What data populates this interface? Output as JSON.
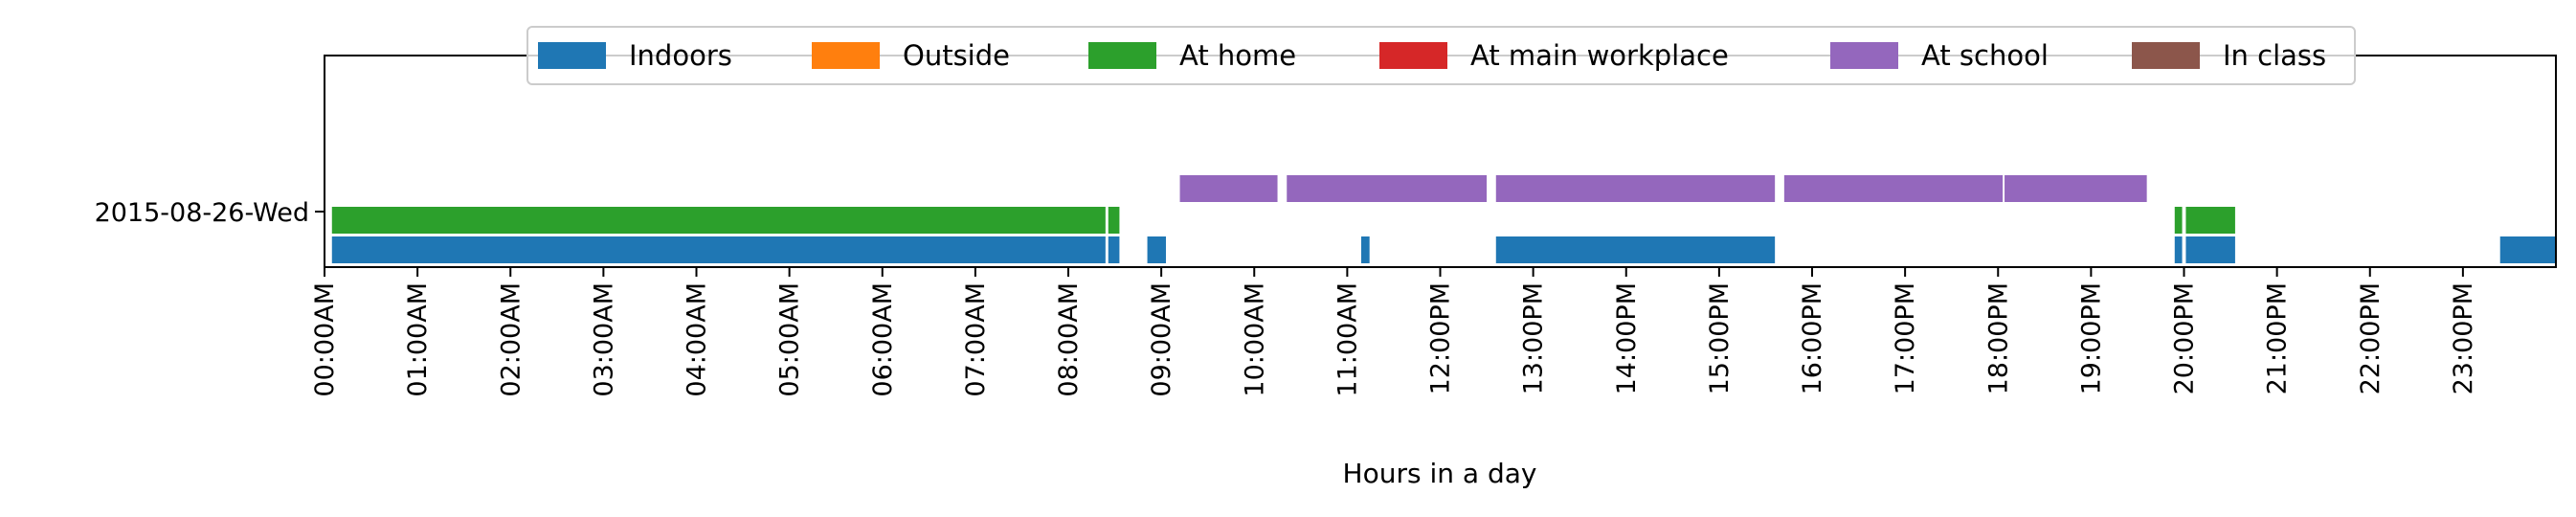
{
  "chart_data": {
    "type": "timeline",
    "title": "",
    "xlabel": "Hours in a day",
    "ylabel": "",
    "xlim": [
      0,
      24
    ],
    "x_ticks": [
      {
        "v": 0,
        "label": "00:00AM"
      },
      {
        "v": 1,
        "label": "01:00AM"
      },
      {
        "v": 2,
        "label": "02:00AM"
      },
      {
        "v": 3,
        "label": "03:00AM"
      },
      {
        "v": 4,
        "label": "04:00AM"
      },
      {
        "v": 5,
        "label": "05:00AM"
      },
      {
        "v": 6,
        "label": "06:00AM"
      },
      {
        "v": 7,
        "label": "07:00AM"
      },
      {
        "v": 8,
        "label": "08:00AM"
      },
      {
        "v": 9,
        "label": "09:00AM"
      },
      {
        "v": 10,
        "label": "10:00AM"
      },
      {
        "v": 11,
        "label": "11:00AM"
      },
      {
        "v": 12,
        "label": "12:00PM"
      },
      {
        "v": 13,
        "label": "13:00PM"
      },
      {
        "v": 14,
        "label": "14:00PM"
      },
      {
        "v": 15,
        "label": "15:00PM"
      },
      {
        "v": 16,
        "label": "16:00PM"
      },
      {
        "v": 17,
        "label": "17:00PM"
      },
      {
        "v": 18,
        "label": "18:00PM"
      },
      {
        "v": 19,
        "label": "19:00PM"
      },
      {
        "v": 20,
        "label": "20:00PM"
      },
      {
        "v": 21,
        "label": "21:00PM"
      },
      {
        "v": 22,
        "label": "22:00PM"
      },
      {
        "v": 23,
        "label": "23:00PM"
      }
    ],
    "date_label": "2015-08-26-Wed",
    "legend_position": "top-center",
    "grid": false,
    "series": [
      {
        "name": "Indoors",
        "color": "#1f77b4",
        "segments": [
          [
            0.08,
            8.4
          ],
          [
            8.43,
            8.55
          ],
          [
            8.85,
            9.05
          ],
          [
            11.15,
            11.24
          ],
          [
            12.6,
            15.6
          ],
          [
            19.9,
            19.98
          ],
          [
            20.02,
            20.55
          ],
          [
            23.4,
            24.0
          ]
        ]
      },
      {
        "name": "Outside",
        "color": "#ff7f0e",
        "segments": []
      },
      {
        "name": "At home",
        "color": "#2ca02c",
        "segments": [
          [
            0.08,
            8.4
          ],
          [
            8.43,
            8.55
          ],
          [
            19.9,
            19.98
          ],
          [
            20.02,
            20.55
          ]
        ]
      },
      {
        "name": "At main workplace",
        "color": "#d62728",
        "segments": []
      },
      {
        "name": "At school",
        "color": "#9467bd",
        "segments": [
          [
            9.2,
            10.25
          ],
          [
            10.35,
            12.5
          ],
          [
            12.6,
            15.6
          ],
          [
            15.7,
            18.05
          ],
          [
            18.07,
            19.6
          ]
        ]
      },
      {
        "name": "In class",
        "color": "#8c564b",
        "segments": []
      }
    ]
  }
}
